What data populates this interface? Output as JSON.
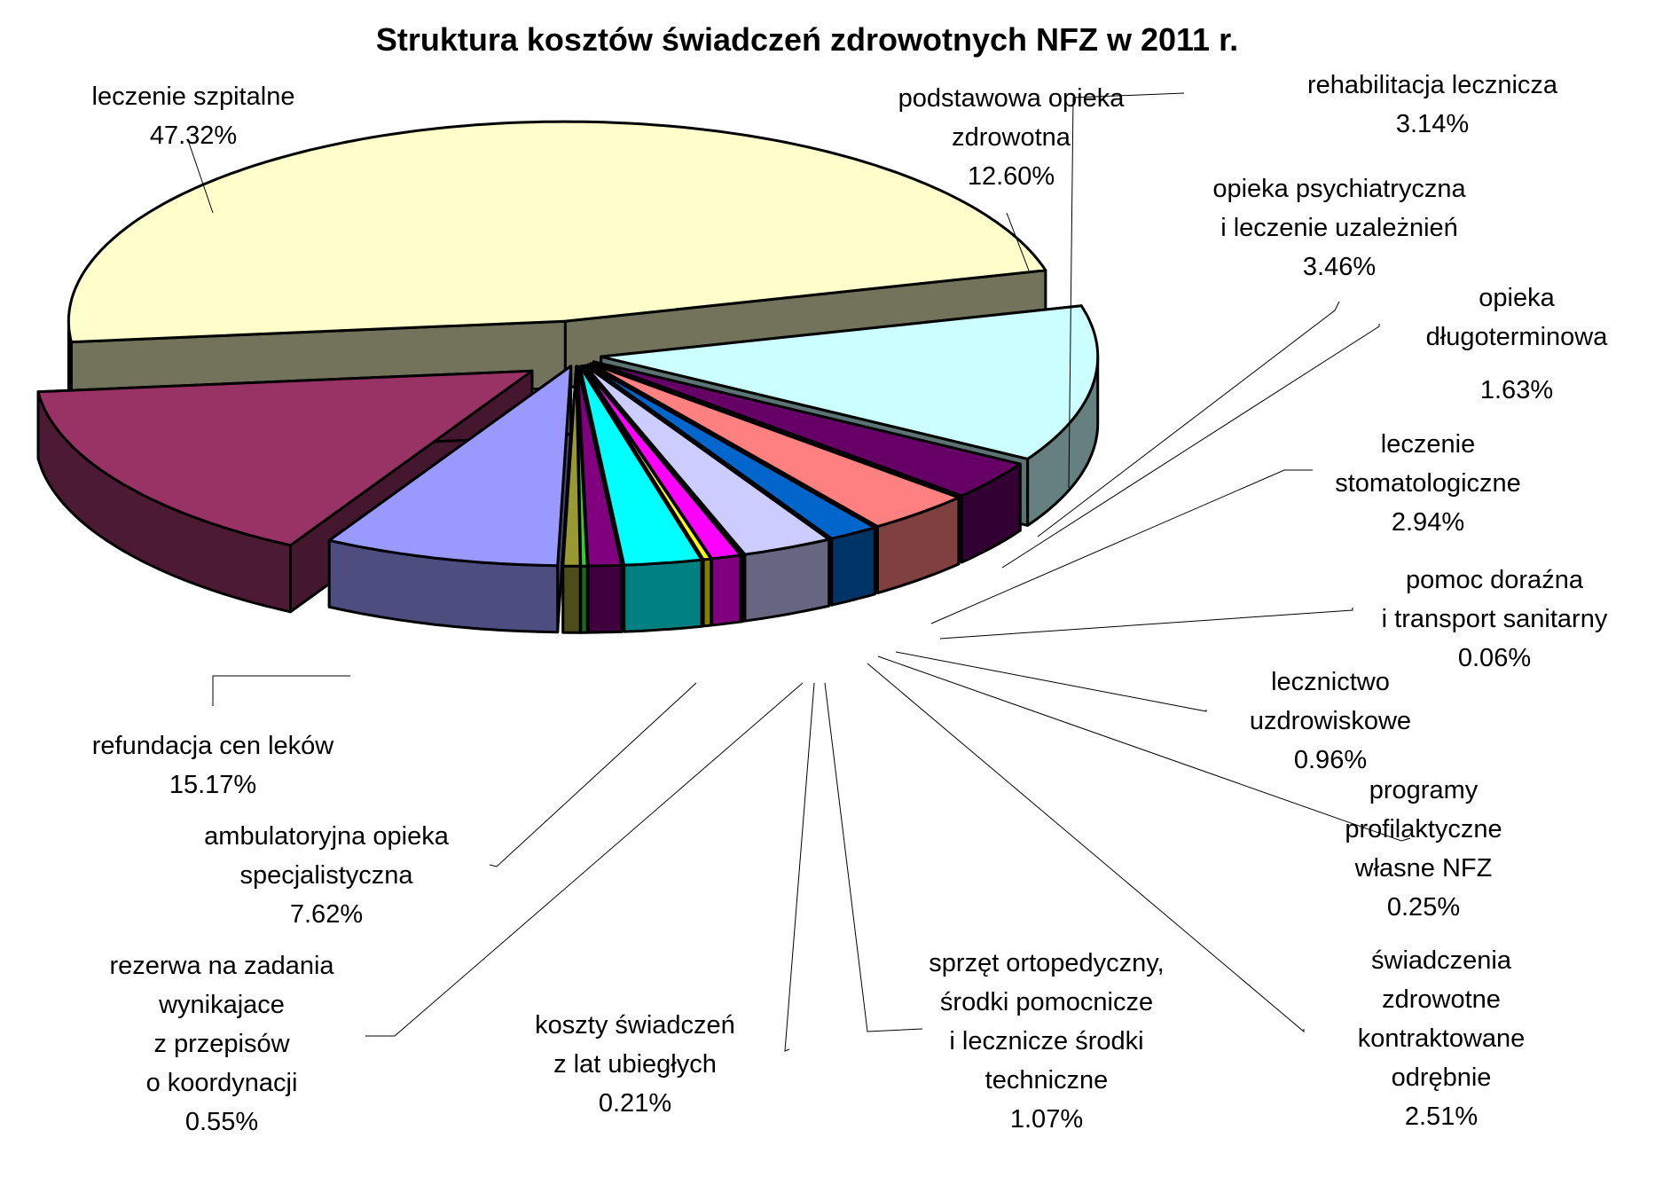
{
  "chart_data": {
    "type": "pie",
    "title": "Struktura kosztów świadczeń zdrowotnych NFZ w 2011 r.",
    "unit": "%",
    "slices": [
      {
        "label": [
          "leczenie szpitalne"
        ],
        "value": 47.32,
        "value_label": "47.32%",
        "color": "#FFFFCC"
      },
      {
        "label": [
          "podstawowa opieka",
          "zdrowotna"
        ],
        "value": 12.6,
        "value_label": "12.60%",
        "color": "#CCFFFF"
      },
      {
        "label": [
          "rehabilitacja lecznicza"
        ],
        "value": 3.14,
        "value_label": "3.14%",
        "color": "#660066"
      },
      {
        "label": [
          "opieka psychiatryczna",
          "i leczenie uzależnień"
        ],
        "value": 3.46,
        "value_label": "3.46%",
        "color": "#FF8080"
      },
      {
        "label": [
          "opieka",
          "długoterminowa"
        ],
        "value": 1.63,
        "value_label": "1.63%",
        "color": "#0066CC"
      },
      {
        "label": [
          "leczenie",
          "stomatologiczne"
        ],
        "value": 2.94,
        "value_label": "2.94%",
        "color": "#CCCCFF"
      },
      {
        "label": [
          "pomoc doraźna",
          "i transport sanitarny"
        ],
        "value": 0.06,
        "value_label": "0.06%",
        "color": "#000080"
      },
      {
        "label": [
          "lecznictwo",
          "uzdrowiskowe"
        ],
        "value": 0.96,
        "value_label": "0.96%",
        "color": "#FF00FF"
      },
      {
        "label": [
          "programy",
          "profilaktyczne",
          "własne NFZ"
        ],
        "value": 0.25,
        "value_label": "0.25%",
        "color": "#FFFF00"
      },
      {
        "label": [
          "świadczenia",
          "zdrowotne",
          "kontraktowane",
          "odrębnie"
        ],
        "value": 2.51,
        "value_label": "2.51%",
        "color": "#00FFFF"
      },
      {
        "label": [
          "sprzęt ortopedyczny,",
          "środki pomocnicze",
          "i lecznicze środki",
          "techniczne"
        ],
        "value": 1.07,
        "value_label": "1.07%",
        "color": "#800080"
      },
      {
        "label": [
          "koszty świadczeń",
          "z lat ubiegłych"
        ],
        "value": 0.21,
        "value_label": "0.21%",
        "color": "#33CC33"
      },
      {
        "label": [
          "rezerwa na zadania",
          "wynikajace",
          "z przepisów",
          "o koordynacji"
        ],
        "value": 0.55,
        "value_label": "0.55%",
        "color": "#999933"
      },
      {
        "label": [
          "ambulatoryjna opieka",
          "specjalistyczna"
        ],
        "value": 7.62,
        "value_label": "7.62%",
        "color": "#9999FF"
      },
      {
        "label": [
          "refundacja cen leków"
        ],
        "value": 15.17,
        "value_label": "15.17%",
        "color": "#993366"
      }
    ]
  }
}
